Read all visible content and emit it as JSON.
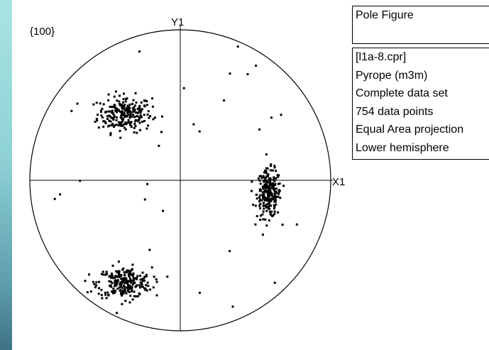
{
  "plot": {
    "label": "{100}",
    "y_axis_label": "Y1",
    "x_axis_label": "X1"
  },
  "title_box": {
    "title": "Pole Figure"
  },
  "info": {
    "lines": [
      "[l1a-8.cpr]",
      "Pyrope (m3m)",
      "Complete data set",
      "754 data points",
      "Equal Area projection",
      "Lower hemisphere"
    ]
  },
  "chart_data": {
    "type": "scatter",
    "projection": "Equal Area",
    "hemisphere": "Lower",
    "n_points": 754,
    "clusters": [
      {
        "center": [
          -0.37,
          0.44
        ],
        "spread": [
          0.09,
          0.06
        ],
        "count": 240
      },
      {
        "center": [
          0.59,
          -0.09
        ],
        "spread": [
          0.04,
          0.08
        ],
        "count": 230
      },
      {
        "center": [
          -0.37,
          -0.68
        ],
        "spread": [
          0.09,
          0.05
        ],
        "count": 250
      }
    ],
    "xlim": [
      -1,
      1
    ],
    "ylim": [
      -1,
      1
    ],
    "grid": false
  }
}
